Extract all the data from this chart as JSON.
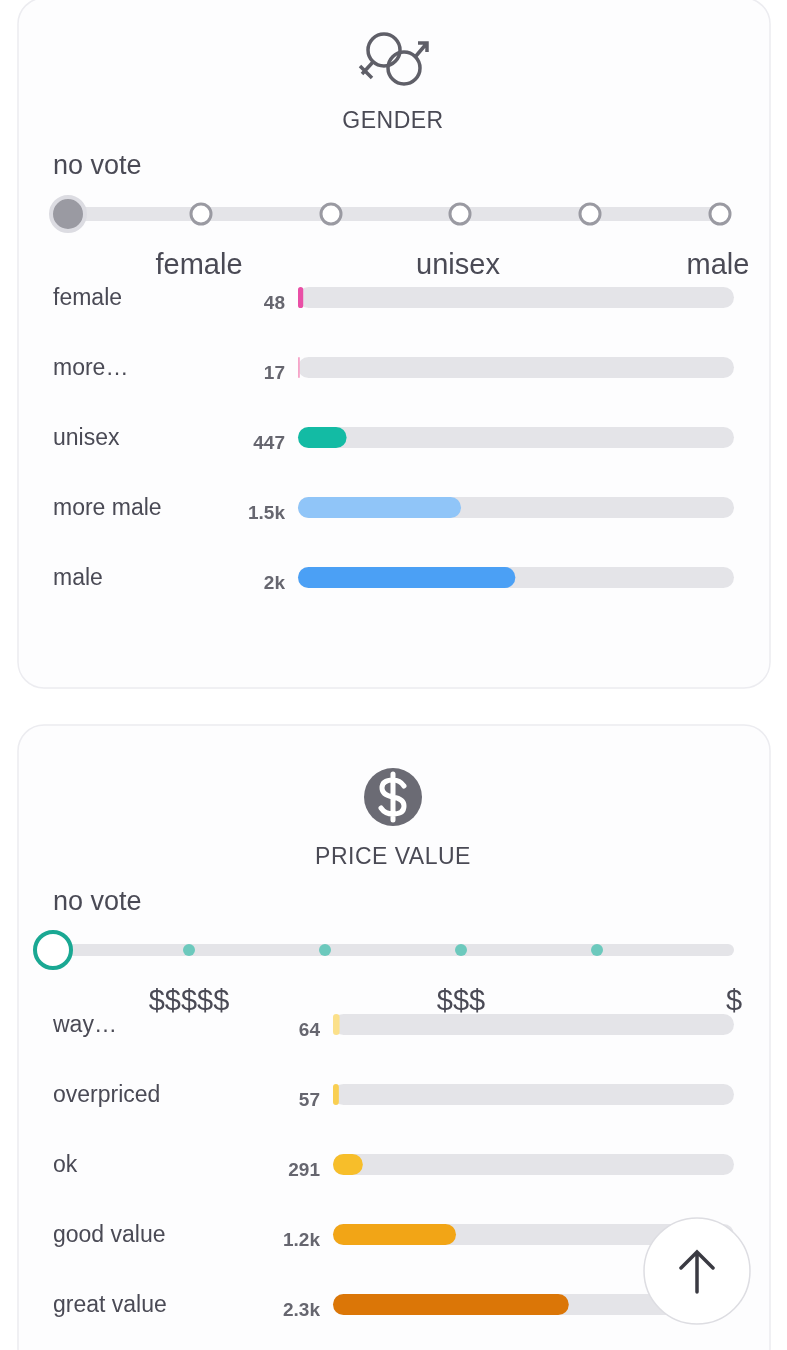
{
  "chart_data": [
    {
      "type": "bar",
      "orientation": "horizontal",
      "title": "GENDER",
      "categories": [
        "female",
        "more…",
        "unisex",
        "more male",
        "male"
      ],
      "values": [
        48,
        17,
        447,
        1500,
        2000
      ],
      "value_labels": [
        "48",
        "17",
        "447",
        "1.5k",
        "2k"
      ],
      "colors": [
        "#e94fa6",
        "#f6a5c9",
        "#13bba4",
        "#90c5f8",
        "#4ba0f5"
      ],
      "xlim": [
        0,
        4012
      ],
      "annotations": [
        "no vote",
        "female",
        "unisex",
        "male"
      ]
    },
    {
      "type": "bar",
      "orientation": "horizontal",
      "title": "PRICE VALUE",
      "categories": [
        "way…",
        "overpriced",
        "ok",
        "good value",
        "great value"
      ],
      "values": [
        64,
        57,
        291,
        1200,
        2300
      ],
      "value_labels": [
        "64",
        "57",
        "291",
        "1.2k",
        "2.3k"
      ],
      "colors": [
        "#fbe08a",
        "#f9cf52",
        "#f7be2a",
        "#f2a516",
        "#db7607"
      ],
      "xlim": [
        0,
        3912
      ],
      "annotations": [
        "no vote",
        "$$$$$",
        "$$$",
        "$"
      ]
    }
  ]
}
